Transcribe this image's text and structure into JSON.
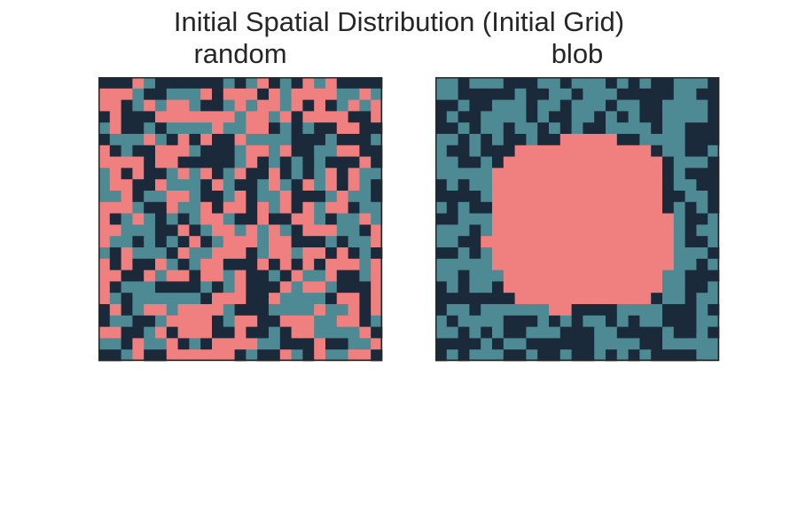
{
  "figure": {
    "title": "Initial Spatial Distribution (Initial Grid)"
  },
  "colors": {
    "0": "#1b2a3a",
    "1": "#4e8a94",
    "2": "#f08080",
    "frame": "#262626"
  },
  "chart_data": [
    {
      "type": "heatmap",
      "title": "random",
      "rows": 25,
      "cols": 25,
      "legend": "none",
      "grid": false,
      "note_on_encoding": "each string is one grid row from top to bottom, each digit is the category of one cell (0 = dark navy, 1 = teal, 2 = salmon)",
      "grid_rows": [
        "0002100000010120102120000",
        "2221001112022202122221121",
        "2201212210012122120201212",
        "0200022222221221202222002",
        "1200101111211220101002200",
        "0111210202002111100010001",
        "2010022210001221200112200",
        "2222022000001201010100020",
        "1202001212012002010120211",
        "1220021110210012102120210",
        "1120112210012011200012110",
        "2221002112022021202122011",
        "2012101012210020022101121",
        "2211100201221212102221102",
        "2110101020122212200010112",
        "1021110211222012212202010",
        "2020021012200020202022212",
        "2200212202212001021120012",
        "2011100001012000212210002",
        "2101111110222002111102202",
        "0201221222210001111211202",
        "0110012222012200222112201",
        "2200120222002001022111120",
        "1102112010222211000200112",
        "0012002222220100210211220"
      ]
    },
    {
      "type": "heatmap",
      "title": "blob",
      "rows": 25,
      "cols": 25,
      "legend": "none",
      "grid": false,
      "note_on_encoding": "each string is one grid row from top to bottom, each digit is the category of one cell (0 = dark navy, 1 = teal, 2 = salmon)",
      "grid_rows": [
        "1101110001101110101001110",
        "1100000100110111000001100",
        "0010011101101110110011110",
        "0100111101001101010011110",
        "0010110110101001111011000",
        "1101010010022222001111000",
        "1001000222222222222011001",
        "1100102222222222222201110",
        "1111122222222222222201000",
        "0101122222222222222201100",
        "0000122222222222222200110",
        "1010022222222222222201010",
        "0011122222222222222221001",
        "1110122222222222222221011",
        "1100222222222222222221001",
        "0010122222222222222221110",
        "1111122222222222222221101",
        "1101112222222222222211000",
        "0101102222222222222211001",
        "0000000222222222222011011",
        "0110111111220000111100010",
        "1011110001010110101100011",
        "1101010011100011000010010",
        "0000101100000011110011111",
        "0101110010010010101000011"
      ]
    }
  ]
}
